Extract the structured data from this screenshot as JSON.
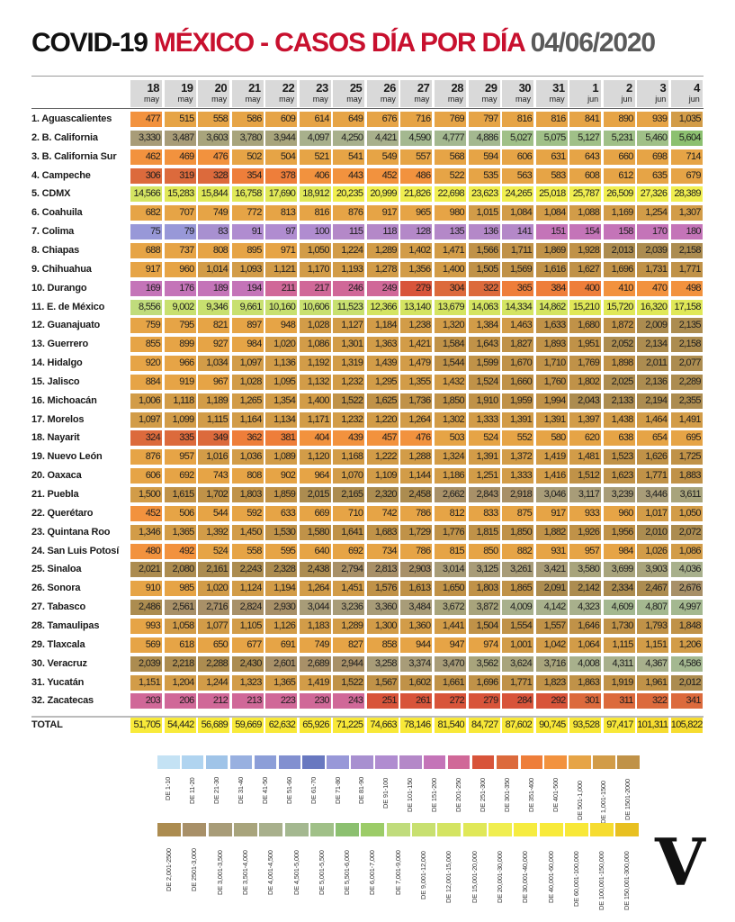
{
  "title": {
    "part1": "COVID-19 ",
    "part2": "MÉXICO - CASOS DÍA POR DÍA ",
    "part3": "04/06/2020"
  },
  "chart_data": {
    "type": "table",
    "title": "COVID-19 MÉXICO - CASOS DÍA POR DÍA 04/06/2020",
    "columns": [
      {
        "day": "18",
        "month": "may"
      },
      {
        "day": "19",
        "month": "may"
      },
      {
        "day": "20",
        "month": "may"
      },
      {
        "day": "21",
        "month": "may"
      },
      {
        "day": "22",
        "month": "may"
      },
      {
        "day": "23",
        "month": "may"
      },
      {
        "day": "25",
        "month": "may"
      },
      {
        "day": "26",
        "month": "may"
      },
      {
        "day": "27",
        "month": "may"
      },
      {
        "day": "28",
        "month": "may"
      },
      {
        "day": "29",
        "month": "may"
      },
      {
        "day": "30",
        "month": "may"
      },
      {
        "day": "31",
        "month": "may"
      },
      {
        "day": "1",
        "month": "jun"
      },
      {
        "day": "2",
        "month": "jun"
      },
      {
        "day": "3",
        "month": "jun"
      },
      {
        "day": "4",
        "month": "jun"
      }
    ],
    "rows": [
      {
        "label": "1. Aguascalientes",
        "values": [
          "477",
          "515",
          "558",
          "586",
          "609",
          "614",
          "649",
          "676",
          "716",
          "769",
          "797",
          "816",
          "816",
          "841",
          "890",
          "939",
          "1,035"
        ]
      },
      {
        "label": "2. B. California",
        "values": [
          "3,330",
          "3,487",
          "3,603",
          "3,780",
          "3,944",
          "4,097",
          "4,250",
          "4,421",
          "4,590",
          "4,777",
          "4,886",
          "5,027",
          "5,075",
          "5,127",
          "5,231",
          "5,460",
          "5,604"
        ]
      },
      {
        "label": "3. B. California Sur",
        "values": [
          "462",
          "469",
          "476",
          "502",
          "504",
          "521",
          "541",
          "549",
          "557",
          "568",
          "594",
          "606",
          "631",
          "643",
          "660",
          "698",
          "714"
        ]
      },
      {
        "label": "4. Campeche",
        "values": [
          "306",
          "319",
          "328",
          "354",
          "378",
          "406",
          "443",
          "452",
          "486",
          "522",
          "535",
          "563",
          "583",
          "608",
          "612",
          "635",
          "679"
        ]
      },
      {
        "label": "5. CDMX",
        "values": [
          "14,566",
          "15,283",
          "15,844",
          "16,758",
          "17,690",
          "18,912",
          "20,235",
          "20,999",
          "21,826",
          "22,698",
          "23,623",
          "24,265",
          "25,018",
          "25,787",
          "26,509",
          "27,326",
          "28,389"
        ]
      },
      {
        "label": "6. Coahuila",
        "values": [
          "682",
          "707",
          "749",
          "772",
          "813",
          "816",
          "876",
          "917",
          "965",
          "980",
          "1,015",
          "1,084",
          "1,084",
          "1,088",
          "1,169",
          "1,254",
          "1,307"
        ]
      },
      {
        "label": "7. Colima",
        "values": [
          "75",
          "79",
          "83",
          "91",
          "97",
          "100",
          "115",
          "118",
          "128",
          "135",
          "136",
          "141",
          "151",
          "154",
          "158",
          "170",
          "180"
        ]
      },
      {
        "label": "8. Chiapas",
        "values": [
          "688",
          "737",
          "808",
          "895",
          "971",
          "1,050",
          "1,224",
          "1,289",
          "1,402",
          "1,471",
          "1,566",
          "1,711",
          "1,869",
          "1,928",
          "2,013",
          "2,039",
          "2,158"
        ]
      },
      {
        "label": "9. Chihuahua",
        "values": [
          "917",
          "960",
          "1,014",
          "1,093",
          "1,121",
          "1,170",
          "1,193",
          "1,278",
          "1,356",
          "1,400",
          "1,505",
          "1,569",
          "1,616",
          "1,627",
          "1,696",
          "1,731",
          "1,771"
        ]
      },
      {
        "label": "10. Durango",
        "values": [
          "169",
          "176",
          "189",
          "194",
          "211",
          "217",
          "246",
          "249",
          "279",
          "304",
          "322",
          "365",
          "384",
          "400",
          "410",
          "470",
          "498"
        ]
      },
      {
        "label": "11. E. de México",
        "values": [
          "8,556",
          "9,002",
          "9,346",
          "9,661",
          "10,160",
          "10,606",
          "11,523",
          "12,366",
          "13,140",
          "13,679",
          "14,063",
          "14,334",
          "14,862",
          "15,210",
          "15,720",
          "16,320",
          "17,158"
        ]
      },
      {
        "label": "12. Guanajuato",
        "values": [
          "759",
          "795",
          "821",
          "897",
          "948",
          "1,028",
          "1,127",
          "1,184",
          "1,238",
          "1,320",
          "1,384",
          "1,463",
          "1,633",
          "1,680",
          "1,872",
          "2,009",
          "2,135"
        ]
      },
      {
        "label": "13. Guerrero",
        "values": [
          "855",
          "899",
          "927",
          "984",
          "1,020",
          "1,086",
          "1,301",
          "1,363",
          "1,421",
          "1,584",
          "1,643",
          "1,827",
          "1,893",
          "1,951",
          "2,052",
          "2,134",
          "2,158"
        ]
      },
      {
        "label": "14. Hidalgo",
        "values": [
          "920",
          "966",
          "1,034",
          "1,097",
          "1,136",
          "1,192",
          "1,319",
          "1,439",
          "1,479",
          "1,544",
          "1,599",
          "1,670",
          "1,710",
          "1,769",
          "1,898",
          "2,011",
          "2,077"
        ]
      },
      {
        "label": "15. Jalisco",
        "values": [
          "884",
          "919",
          "967",
          "1,028",
          "1,095",
          "1,132",
          "1,232",
          "1,295",
          "1,355",
          "1,432",
          "1,524",
          "1,660",
          "1,760",
          "1,802",
          "2,025",
          "2,136",
          "2,289"
        ]
      },
      {
        "label": "16. Michoacán",
        "values": [
          "1,006",
          "1,118",
          "1,189",
          "1,265",
          "1,354",
          "1,400",
          "1,522",
          "1,625",
          "1,736",
          "1,850",
          "1,910",
          "1,959",
          "1,994",
          "2,043",
          "2,133",
          "2,194",
          "2,355"
        ]
      },
      {
        "label": "17. Morelos",
        "values": [
          "1,097",
          "1,099",
          "1,115",
          "1,164",
          "1,134",
          "1,171",
          "1,232",
          "1,220",
          "1,264",
          "1,302",
          "1,333",
          "1,391",
          "1,391",
          "1,397",
          "1,438",
          "1,464",
          "1,491"
        ]
      },
      {
        "label": "18. Nayarit",
        "values": [
          "324",
          "335",
          "349",
          "362",
          "381",
          "404",
          "439",
          "457",
          "476",
          "503",
          "524",
          "552",
          "580",
          "620",
          "638",
          "654",
          "695"
        ]
      },
      {
        "label": "19. Nuevo León",
        "values": [
          "876",
          "957",
          "1,016",
          "1,036",
          "1,089",
          "1,120",
          "1,168",
          "1,222",
          "1,288",
          "1,324",
          "1,391",
          "1,372",
          "1,419",
          "1,481",
          "1,523",
          "1,626",
          "1,725"
        ]
      },
      {
        "label": "20. Oaxaca",
        "values": [
          "606",
          "692",
          "743",
          "808",
          "902",
          "964",
          "1,070",
          "1,109",
          "1,144",
          "1,186",
          "1,251",
          "1,333",
          "1,416",
          "1,512",
          "1,623",
          "1,771",
          "1,883"
        ]
      },
      {
        "label": "21. Puebla",
        "values": [
          "1,500",
          "1,615",
          "1,702",
          "1,803",
          "1,859",
          "2,015",
          "2,165",
          "2,320",
          "2,458",
          "2,662",
          "2,843",
          "2,918",
          "3,046",
          "3,117",
          "3,239",
          "3,446",
          "3,611"
        ]
      },
      {
        "label": "22. Querétaro",
        "values": [
          "452",
          "506",
          "544",
          "592",
          "633",
          "669",
          "710",
          "742",
          "786",
          "812",
          "833",
          "875",
          "917",
          "933",
          "960",
          "1,017",
          "1,050"
        ]
      },
      {
        "label": "23. Quintana Roo",
        "values": [
          "1,346",
          "1,365",
          "1,392",
          "1,450",
          "1,530",
          "1,580",
          "1,641",
          "1,683",
          "1,729",
          "1,776",
          "1,815",
          "1,850",
          "1,882",
          "1,926",
          "1,956",
          "2,010",
          "2,072"
        ]
      },
      {
        "label": "24. San Luis Potosí",
        "values": [
          "480",
          "492",
          "524",
          "558",
          "595",
          "640",
          "692",
          "734",
          "786",
          "815",
          "850",
          "882",
          "931",
          "957",
          "984",
          "1,026",
          "1,086"
        ]
      },
      {
        "label": "25. Sinaloa",
        "values": [
          "2,021",
          "2,080",
          "2,161",
          "2,243",
          "2,328",
          "2,438",
          "2,794",
          "2,813",
          "2,903",
          "3,014",
          "3,125",
          "3,261",
          "3,421",
          "3,580",
          "3,699",
          "3,903",
          "4,036"
        ]
      },
      {
        "label": "26. Sonora",
        "values": [
          "910",
          "985",
          "1,020",
          "1,124",
          "1,194",
          "1,264",
          "1,451",
          "1,576",
          "1,613",
          "1,650",
          "1,803",
          "1,865",
          "2,091",
          "2,142",
          "2,334",
          "2,467",
          "2,676"
        ]
      },
      {
        "label": "27. Tabasco",
        "values": [
          "2,486",
          "2,561",
          "2,716",
          "2,824",
          "2,930",
          "3,044",
          "3,236",
          "3,360",
          "3,484",
          "3,672",
          "3,872",
          "4,009",
          "4,142",
          "4,323",
          "4,609",
          "4,807",
          "4,997"
        ]
      },
      {
        "label": "28. Tamaulipas",
        "values": [
          "993",
          "1,058",
          "1,077",
          "1,105",
          "1,126",
          "1,183",
          "1,289",
          "1,300",
          "1,360",
          "1,441",
          "1,504",
          "1,554",
          "1,557",
          "1,646",
          "1,730",
          "1,793",
          "1,848"
        ]
      },
      {
        "label": "29. Tlaxcala",
        "values": [
          "569",
          "618",
          "650",
          "677",
          "691",
          "749",
          "827",
          "858",
          "944",
          "947",
          "974",
          "1,001",
          "1,042",
          "1,064",
          "1,115",
          "1,151",
          "1,206"
        ]
      },
      {
        "label": "30. Veracruz",
        "values": [
          "2,039",
          "2,218",
          "2,288",
          "2,430",
          "2,601",
          "2,689",
          "2,944",
          "3,258",
          "3,374",
          "3,470",
          "3,562",
          "3,624",
          "3,716",
          "4,008",
          "4,311",
          "4,367",
          "4,586"
        ]
      },
      {
        "label": "31. Yucatán",
        "values": [
          "1,151",
          "1,204",
          "1,244",
          "1,323",
          "1,365",
          "1,419",
          "1,522",
          "1,567",
          "1,602",
          "1,661",
          "1,696",
          "1,771",
          "1,823",
          "1,863",
          "1,919",
          "1,961",
          "2,012"
        ]
      },
      {
        "label": "32. Zacatecas",
        "values": [
          "203",
          "206",
          "212",
          "213",
          "223",
          "230",
          "243",
          "251",
          "261",
          "272",
          "279",
          "284",
          "292",
          "301",
          "311",
          "322",
          "341"
        ]
      }
    ],
    "total": {
      "label": "TOTAL",
      "values": [
        "51,705",
        "54,442",
        "56,689",
        "59,669",
        "62,632",
        "65,926",
        "71,225",
        "74,663",
        "78,146",
        "81,540",
        "84,727",
        "87,602",
        "90,745",
        "93,528",
        "97,417",
        "101,311",
        "105,822"
      ]
    },
    "legend": [
      [
        {
          "label": "DE 1-10",
          "max": 10,
          "color": "#c4e2f4"
        },
        {
          "label": "DE 11-20",
          "max": 20,
          "color": "#b0d4f0"
        },
        {
          "label": "DE 21-30",
          "max": 30,
          "color": "#a0c4e8"
        },
        {
          "label": "DE 31-40",
          "max": 40,
          "color": "#98b0e0"
        },
        {
          "label": "DE 41-50",
          "max": 50,
          "color": "#8c9ed8"
        },
        {
          "label": "DE 51-60",
          "max": 60,
          "color": "#8290d0"
        },
        {
          "label": "DE 61-70",
          "max": 70,
          "color": "#6878c0"
        },
        {
          "label": "DE 71-80",
          "max": 80,
          "color": "#9898d8"
        },
        {
          "label": "DE 81-90",
          "max": 90,
          "color": "#a890d0"
        },
        {
          "label": "DE 91-100",
          "max": 100,
          "color": "#b08cd0"
        },
        {
          "label": "DE 101-150",
          "max": 150,
          "color": "#b488c8"
        },
        {
          "label": "DE 151-200",
          "max": 200,
          "color": "#c474b8"
        },
        {
          "label": "DE 201-250",
          "max": 250,
          "color": "#d06898"
        },
        {
          "label": "DE 251-300",
          "max": 300,
          "color": "#d8543a"
        },
        {
          "label": "DE 301-350",
          "max": 350,
          "color": "#dc6a3c"
        },
        {
          "label": "DE 351-400",
          "max": 400,
          "color": "#ee7e3a"
        },
        {
          "label": "DE 401-500",
          "max": 500,
          "color": "#f2923e"
        },
        {
          "label": "DE 501-1,000",
          "max": 1000,
          "color": "#e6a446"
        },
        {
          "label": "DE 1,001-1500",
          "max": 1500,
          "color": "#d29c48"
        },
        {
          "label": "DE 1501-2000",
          "max": 2000,
          "color": "#c09248"
        }
      ],
      [
        {
          "label": "DE 2,001-2500",
          "max": 2500,
          "color": "#ac8c50"
        },
        {
          "label": "DE 2501-3,000",
          "max": 3000,
          "color": "#a89068"
        },
        {
          "label": "DE 3,001-3,500",
          "max": 3500,
          "color": "#a89c78"
        },
        {
          "label": "DE 3,501-4,000",
          "max": 4000,
          "color": "#a8a47c"
        },
        {
          "label": "DE 4,001-4,500",
          "max": 4500,
          "color": "#a8b08c"
        },
        {
          "label": "DE 4,501-5,000",
          "max": 5000,
          "color": "#a4b890"
        },
        {
          "label": "DE 5,001-5,500",
          "max": 5500,
          "color": "#a0c088"
        },
        {
          "label": "DE 5,501-6,000",
          "max": 6000,
          "color": "#8cc070"
        },
        {
          "label": "DE 6,001-7,000",
          "max": 7000,
          "color": "#9ccc68"
        },
        {
          "label": "DE 7,001-9,000",
          "max": 9000,
          "color": "#c0dc7c"
        },
        {
          "label": "DE 9,001-12,000",
          "max": 12000,
          "color": "#c8e070"
        },
        {
          "label": "DE 12,001-15,000",
          "max": 15000,
          "color": "#d4e462"
        },
        {
          "label": "DE 15,001-20,000",
          "max": 20000,
          "color": "#e0e858"
        },
        {
          "label": "DE 20,001-30,000",
          "max": 30000,
          "color": "#f0ee50"
        },
        {
          "label": "DE 30,001-40,000",
          "max": 40000,
          "color": "#f6ec40"
        },
        {
          "label": "DE 40,001-60,000",
          "max": 60000,
          "color": "#f8ea3a"
        },
        {
          "label": "DE 60,001-100,000",
          "max": 100000,
          "color": "#f8e838"
        },
        {
          "label": "DE 100,001-150,000",
          "max": 150000,
          "color": "#f6dc30"
        },
        {
          "label": "DE 150,001-300,000",
          "max": 300000,
          "color": "#e8c020"
        }
      ]
    ]
  },
  "logo": "V"
}
